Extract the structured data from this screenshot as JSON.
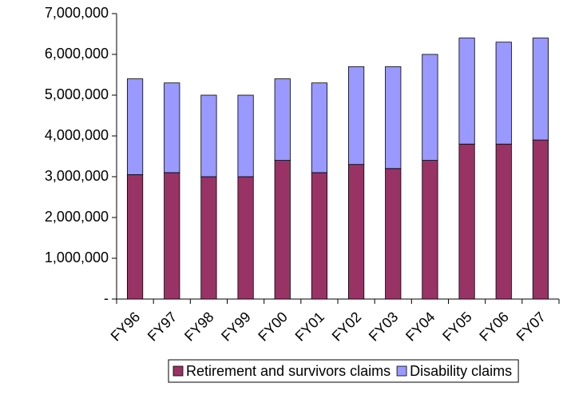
{
  "chart_data": {
    "type": "stacked_bar",
    "categories": [
      "FY96",
      "FY97",
      "FY98",
      "FY99",
      "FY00",
      "FY01",
      "FY02",
      "FY03",
      "FY04",
      "FY05",
      "FY06",
      "FY07"
    ],
    "series": [
      {
        "name": "Retirement and survivors claims",
        "color": "#993366",
        "values": [
          3050000,
          3100000,
          3000000,
          3000000,
          3400000,
          3100000,
          3300000,
          3200000,
          3400000,
          3800000,
          3800000,
          3900000
        ]
      },
      {
        "name": "Disability claims",
        "color": "#9999ff",
        "values": [
          2350000,
          2200000,
          2000000,
          2000000,
          2000000,
          2200000,
          2400000,
          2500000,
          2600000,
          2600000,
          2500000,
          2500000
        ]
      }
    ],
    "ylim": [
      0,
      7000000
    ],
    "yticks": [
      {
        "value": 0,
        "label": "-"
      },
      {
        "value": 1000000,
        "label": "1,000,000"
      },
      {
        "value": 2000000,
        "label": "2,000,000"
      },
      {
        "value": 3000000,
        "label": "3,000,000"
      },
      {
        "value": 4000000,
        "label": "4,000,000"
      },
      {
        "value": 5000000,
        "label": "5,000,000"
      },
      {
        "value": 6000000,
        "label": "6,000,000"
      },
      {
        "value": 7000000,
        "label": "7,000,000"
      }
    ],
    "grid": false,
    "legend": "bottom"
  }
}
